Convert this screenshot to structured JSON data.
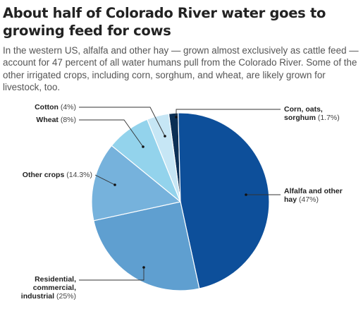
{
  "chart_data": {
    "type": "pie",
    "title": "About half of Colorado River water goes to growing feed for cows",
    "subtitle": "In the western US, alfalfa and other hay — grown almost exclusively as cattle feed — account for 47 percent of all water humans pull from the Colorado River. Some of the other irrigated crops, including corn, sorghum, and wheat, are likely grown for livestock, too.",
    "slices": [
      {
        "label": "Corn, oats, sorghum",
        "value": 1.7,
        "value_text": "(1.7%)",
        "color": "#0b2f55"
      },
      {
        "label": "Alfalfa and other hay",
        "value": 47,
        "value_text": "(47%)",
        "color": "#0d4f9a"
      },
      {
        "label": "Residential, commercial, industrial",
        "value": 25,
        "value_text": "(25%)",
        "color": "#5f9fd0"
      },
      {
        "label": "Other crops",
        "value": 14.3,
        "value_text": "(14.3%)",
        "color": "#76b2dc"
      },
      {
        "label": "Wheat",
        "value": 8,
        "value_text": "(8%)",
        "color": "#93d3ec"
      },
      {
        "label": "Cotton",
        "value": 4,
        "value_text": "(4%)",
        "color": "#c6e6f5"
      }
    ]
  }
}
